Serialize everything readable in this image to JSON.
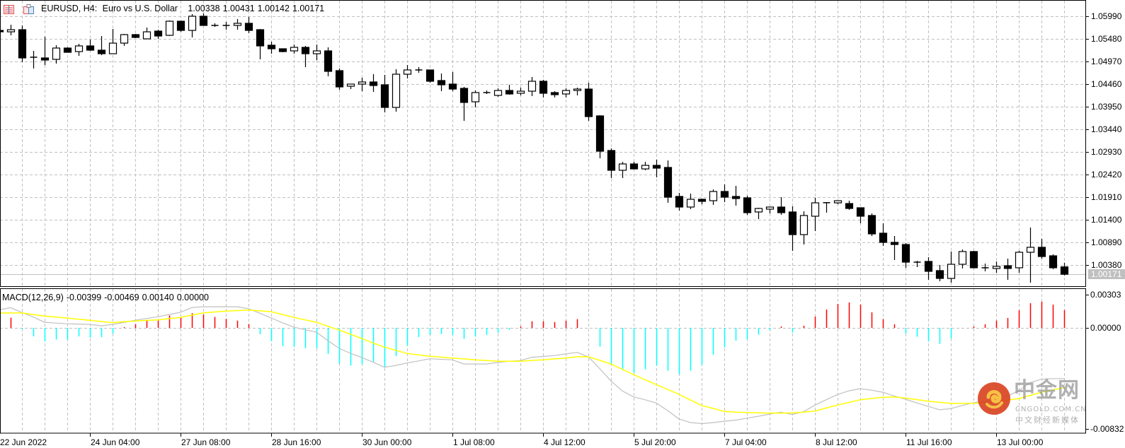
{
  "header": {
    "symbol": "EURUSD, H4:",
    "description": "Euro vs U.S. Dollar",
    "ohlc": [
      "1.00338",
      "1.00431",
      "1.00142",
      "1.00171"
    ]
  },
  "icons": [
    "chart-list-icon",
    "indicator-folder-icon"
  ],
  "macd_label": {
    "name": "MACD(12,26,9)",
    "values": [
      "-0.00399",
      "-0.00469",
      "0.00140",
      "0.00000"
    ]
  },
  "colors": {
    "bull_body": "#ffffff",
    "bear_body": "#000000",
    "grid": "#c0c0c0",
    "macd_line": "#c0c0c0",
    "signal_line": "#ffff00",
    "hist_positive": "#ff0000",
    "hist_negative": "#00ffff",
    "price_line": "#c0c0c0",
    "price_tag_bg": "#c0c0c0"
  },
  "watermark": {
    "brand": "中金网",
    "domain": "CNGOLD.COM.CN",
    "tagline": "中文财经新媒体"
  },
  "chart_data": [
    {
      "type": "candlestick",
      "symbol": "EURUSD",
      "timeframe": "H4",
      "grid": true,
      "y_ticks": [
        "1.05990",
        "1.05480",
        "1.04970",
        "1.04460",
        "1.03950",
        "1.03440",
        "1.02930",
        "1.02420",
        "1.01910",
        "1.01400",
        "1.00890",
        "1.00380"
      ],
      "ylim": [
        0.9994,
        1.0626
      ],
      "current_price": "1.00171",
      "x_tick_labels": [
        "22 Jun 2022",
        "24 Jun 04:00",
        "27 Jun 08:00",
        "28 Jun 16:00",
        "30 Jun 00:00",
        "1 Jul 08:00",
        "4 Jul 12:00",
        "5 Jul 20:00",
        "7 Jul 04:00",
        "8 Jul 12:00",
        "11 Jul 16:00",
        "13 Jul 00:00"
      ],
      "ohlc": [
        [
          1.05671,
          1.0568,
          1.05639,
          1.05639
        ],
        [
          1.05639,
          1.05799,
          1.0556,
          1.05687
        ],
        [
          1.05687,
          1.05783,
          1.04954,
          1.0505
        ],
        [
          1.0505,
          1.05209,
          1.04811,
          1.05066
        ],
        [
          1.0505,
          1.05528,
          1.0489,
          1.05002
        ],
        [
          1.05018,
          1.05337,
          1.04922,
          1.05273
        ],
        [
          1.05273,
          1.05289,
          1.05177,
          1.05177
        ],
        [
          1.05193,
          1.05368,
          1.05097,
          1.05321
        ],
        [
          1.05321,
          1.05464,
          1.05209,
          1.05225
        ],
        [
          1.05225,
          1.05544,
          1.05113,
          1.05145
        ],
        [
          1.05145,
          1.05703,
          1.05145,
          1.05384
        ],
        [
          1.05384,
          1.05592,
          1.05321,
          1.05576
        ],
        [
          1.05576,
          1.05592,
          1.05496,
          1.05512
        ],
        [
          1.0548,
          1.05735,
          1.0548,
          1.05639
        ],
        [
          1.05655,
          1.05687,
          1.0548,
          1.05544
        ],
        [
          1.0556,
          1.05894,
          1.05544,
          1.05878
        ],
        [
          1.05878,
          1.05894,
          1.05639,
          1.05671
        ],
        [
          1.05671,
          1.06038,
          1.05512,
          1.0599
        ],
        [
          1.0599,
          1.06054,
          1.05783,
          1.05783
        ],
        [
          1.05783,
          1.05831,
          1.05751,
          1.05775
        ],
        [
          1.05783,
          1.05862,
          1.05687,
          1.0578
        ],
        [
          1.05783,
          1.05926,
          1.05687,
          1.05831
        ],
        [
          1.05831,
          1.05974,
          1.05607,
          1.05671
        ],
        [
          1.05687,
          1.05703,
          1.05018,
          1.05321
        ],
        [
          1.05337,
          1.05416,
          1.05145,
          1.05257
        ],
        [
          1.05257,
          1.05257,
          1.05177,
          1.05193
        ],
        [
          1.05209,
          1.05352,
          1.05145,
          1.05289
        ],
        [
          1.05289,
          1.05321,
          1.04843,
          1.05145
        ],
        [
          1.05145,
          1.05352,
          1.05002,
          1.05209
        ],
        [
          1.05209,
          1.05289,
          1.04635,
          1.04747
        ],
        [
          1.04763,
          1.04811,
          1.04332,
          1.04396
        ],
        [
          1.04412,
          1.0446,
          1.04348,
          1.0446
        ],
        [
          1.0446,
          1.04603,
          1.043,
          1.04508
        ],
        [
          1.04508,
          1.04683,
          1.04285,
          1.04428
        ],
        [
          1.04444,
          1.04667,
          1.03822,
          1.03934
        ],
        [
          1.03934,
          1.04795,
          1.03838,
          1.04683
        ],
        [
          1.04683,
          1.0489,
          1.04587,
          1.04779
        ],
        [
          1.04779,
          1.04843,
          1.04715,
          1.04775
        ],
        [
          1.04779,
          1.04779,
          1.04492,
          1.04524
        ],
        [
          1.0454,
          1.04699,
          1.043,
          1.04444
        ],
        [
          1.0446,
          1.04731,
          1.043,
          1.04348
        ],
        [
          1.04364,
          1.04396,
          1.03631,
          1.04046
        ],
        [
          1.04061,
          1.04316,
          1.03934,
          1.04269
        ],
        [
          1.04269,
          1.04316,
          1.04237,
          1.04265
        ],
        [
          1.04205,
          1.04364,
          1.04173,
          1.04316
        ],
        [
          1.04316,
          1.04444,
          1.04221,
          1.04237
        ],
        [
          1.04253,
          1.0438,
          1.04205,
          1.043
        ],
        [
          1.043,
          1.04619,
          1.04189,
          1.04524
        ],
        [
          1.04524,
          1.04556,
          1.04157,
          1.04253
        ],
        [
          1.04269,
          1.043,
          1.04157,
          1.04221
        ],
        [
          1.04237,
          1.04364,
          1.04157,
          1.04316
        ],
        [
          1.04316,
          1.0438,
          1.04205,
          1.04348
        ],
        [
          1.04348,
          1.04492,
          1.03631,
          1.03727
        ],
        [
          1.03743,
          1.03759,
          1.02786,
          1.02946
        ],
        [
          1.02962,
          1.0301,
          1.02341,
          1.02516
        ],
        [
          1.02516,
          1.02707,
          1.02341,
          1.02659
        ],
        [
          1.02659,
          1.02707,
          1.02532,
          1.02547
        ],
        [
          1.02547,
          1.02707,
          1.02516,
          1.02627
        ],
        [
          1.02627,
          1.02755,
          1.02356,
          1.02564
        ],
        [
          1.0258,
          1.02739,
          1.01782,
          1.0191
        ],
        [
          1.01926,
          1.02006,
          1.01607,
          1.01687
        ],
        [
          1.01687,
          1.0199,
          1.01639,
          1.01862
        ],
        [
          1.01862,
          1.01878,
          1.0175,
          1.01815
        ],
        [
          1.0183,
          1.02085,
          1.01735,
          1.02038
        ],
        [
          1.02038,
          1.02197,
          1.01798,
          1.0191
        ],
        [
          1.01926,
          1.02165,
          1.01719,
          1.01878
        ],
        [
          1.01894,
          1.01942,
          1.01511,
          1.0156
        ],
        [
          1.01576,
          1.01671,
          1.01416,
          1.01655
        ],
        [
          1.01639,
          1.01687,
          1.01543,
          1.01687
        ],
        [
          1.01687,
          1.0191,
          1.01511,
          1.0156
        ],
        [
          1.01576,
          1.01703,
          1.00699,
          1.01065
        ],
        [
          1.01065,
          1.01591,
          1.00842,
          1.01496
        ],
        [
          1.0148,
          1.01894,
          1.01145,
          1.01782
        ],
        [
          1.01782,
          1.01798,
          1.0156,
          1.01785
        ],
        [
          1.01782,
          1.0183,
          1.0175,
          1.0183
        ],
        [
          1.01766,
          1.0183,
          1.01623,
          1.01655
        ],
        [
          1.01671,
          1.01671,
          1.01321,
          1.0148
        ],
        [
          1.01496,
          1.01543,
          1.01033,
          1.01081
        ],
        [
          1.01097,
          1.01321,
          1.00811,
          1.0089
        ],
        [
          1.0089,
          1.01033,
          1.00491,
          1.00842
        ],
        [
          1.00842,
          1.00874,
          1.00317,
          1.00444
        ],
        [
          1.00444,
          1.00476,
          1.00332,
          1.0044
        ],
        [
          1.0046,
          1.00556,
          1.00046,
          1.00237
        ],
        [
          1.00253,
          1.0038,
          1.00014,
          1.00077
        ],
        [
          1.00077,
          1.00683,
          0.99982,
          1.00396
        ],
        [
          1.00396,
          1.00731,
          1.00301,
          1.00683
        ],
        [
          1.00683,
          1.00699,
          1.00301,
          1.00317
        ],
        [
          1.00317,
          1.00412,
          1.00237,
          1.00301
        ],
        [
          1.00301,
          1.0046,
          1.00205,
          1.00348
        ],
        [
          1.00364,
          1.00524,
          1.00046,
          1.00301
        ],
        [
          1.00317,
          1.00699,
          1.00205,
          1.00667
        ],
        [
          1.00667,
          1.01225,
          0.99982,
          1.00779
        ],
        [
          1.00779,
          1.0097,
          1.00524,
          1.00571
        ],
        [
          1.00587,
          1.00619,
          1.00284,
          1.00317
        ],
        [
          1.00338,
          1.00431,
          1.00142,
          1.00171
        ]
      ]
    },
    {
      "type": "bar+line",
      "indicator": "MACD(12,26,9)",
      "y_ticks": [
        "0.00303",
        "0.00000",
        "-0.00832"
      ],
      "ylim": [
        -0.00832,
        0.00303
      ],
      "macd": [
        0.00142,
        0.00159,
        0.00121,
        0.00085,
        0.00044,
        0.00038,
        0.00032,
        0.0003,
        0.00027,
        0.00016,
        0.00027,
        0.00042,
        0.0006,
        0.00074,
        0.00088,
        0.00105,
        0.00123,
        0.0016,
        0.00166,
        0.00166,
        0.00166,
        0.00166,
        0.00151,
        0.00115,
        0.00078,
        0.0004,
        6e-05,
        -0.00015,
        -0.00034,
        -0.001,
        -0.00161,
        -0.002,
        -0.00233,
        -0.0027,
        -0.0031,
        -0.00295,
        -0.00276,
        -0.0026,
        -0.00243,
        -0.00247,
        -0.00251,
        -0.00284,
        -0.00284,
        -0.00284,
        -0.00272,
        -0.00262,
        -0.00257,
        -0.00231,
        -0.00225,
        -0.00218,
        -0.00205,
        -0.00193,
        -0.00227,
        -0.0032,
        -0.00418,
        -0.00496,
        -0.00543,
        -0.00565,
        -0.00591,
        -0.0065,
        -0.00716,
        -0.00744,
        -0.00753,
        -0.00745,
        -0.00734,
        -0.00725,
        -0.0071,
        -0.00695,
        -0.00678,
        -0.00663,
        -0.00681,
        -0.00659,
        -0.00607,
        -0.00565,
        -0.00524,
        -0.00495,
        -0.00478,
        -0.0049,
        -0.00506,
        -0.00535,
        -0.00561,
        -0.0059,
        -0.00617,
        -0.00644,
        -0.00635,
        -0.0061,
        -0.00589,
        -0.00575,
        -0.00561,
        -0.00537,
        -0.00493,
        -0.00431,
        -0.00404,
        -0.00399,
        -0.00399
      ],
      "signal": [
        0.00117,
        0.00117,
        0.00117,
        0.00105,
        0.00093,
        0.00085,
        0.00077,
        0.00068,
        0.0006,
        0.0005,
        0.00041,
        0.00048,
        0.00054,
        0.00059,
        0.00063,
        0.00073,
        0.00082,
        0.001,
        0.00117,
        0.00125,
        0.00132,
        0.00136,
        0.0014,
        0.00134,
        0.00127,
        0.00105,
        0.00082,
        0.00063,
        0.00044,
        0.00013,
        -0.00017,
        -0.0005,
        -0.00084,
        -0.00119,
        -0.00151,
        -0.00176,
        -0.00201,
        -0.00212,
        -0.00223,
        -0.0023,
        -0.00237,
        -0.00244,
        -0.00251,
        -0.00256,
        -0.00262,
        -0.00262,
        -0.00262,
        -0.00256,
        -0.00251,
        -0.00244,
        -0.00237,
        -0.00227,
        -0.00227,
        -0.00255,
        -0.00284,
        -0.00326,
        -0.00368,
        -0.00407,
        -0.00446,
        -0.00484,
        -0.00523,
        -0.00566,
        -0.0061,
        -0.00633,
        -0.00657,
        -0.00662,
        -0.00665,
        -0.00668,
        -0.0067,
        -0.0067,
        -0.00669,
        -0.00663,
        -0.00654,
        -0.0063,
        -0.00607,
        -0.00586,
        -0.00565,
        -0.00555,
        -0.00546,
        -0.00543,
        -0.00552,
        -0.00564,
        -0.00576,
        -0.00585,
        -0.00594,
        -0.00594,
        -0.00593,
        -0.00587,
        -0.0058,
        -0.00568,
        -0.00556,
        -0.00531,
        -0.00506,
        -0.00488,
        -0.00469
      ],
      "histogram": [
        null,
        0.0008,
        -0.0001,
        -0.00067,
        -0.00107,
        -0.00092,
        -0.00092,
        -0.00067,
        -0.00077,
        -0.00073,
        -0.00044,
        6e-05,
        0.00029,
        0.00057,
        0.00057,
        0.00098,
        0.00084,
        0.00115,
        0.00105,
        0.00086,
        0.00071,
        0.00057,
        0.00029,
        -0.0005,
        -0.00105,
        -0.00143,
        -0.00149,
        -0.00159,
        -0.0016,
        -0.00205,
        -0.00281,
        -0.00297,
        -0.00285,
        -0.00268,
        -0.00312,
        -0.00222,
        -0.0014,
        -0.00073,
        -0.00055,
        -0.0005,
        -0.00055,
        -0.00086,
        -0.00069,
        -0.00055,
        -0.00038,
        -0.00015,
        0.00011,
        0.00052,
        0.00052,
        0.00046,
        0.00057,
        0.00069,
        0.0,
        -0.00147,
        -0.00283,
        -0.00331,
        -0.00354,
        -0.00326,
        -0.00297,
        -0.00337,
        -0.00366,
        -0.00337,
        -0.00291,
        -0.00211,
        -0.00153,
        -0.00101,
        -0.00089,
        -0.00054,
        -0.00019,
        0.00011,
        -0.00037,
        0.00017,
        0.00089,
        0.00144,
        0.00189,
        0.002,
        0.00183,
        0.00122,
        0.00069,
        0.00028,
        -0.00043,
        -0.0007,
        -0.00107,
        -0.00126,
        -0.00083,
        0.0,
        0.00011,
        0.00028,
        0.00057,
        0.00078,
        0.00139,
        0.00194,
        0.00206,
        0.00183,
        0.0014
      ]
    }
  ]
}
